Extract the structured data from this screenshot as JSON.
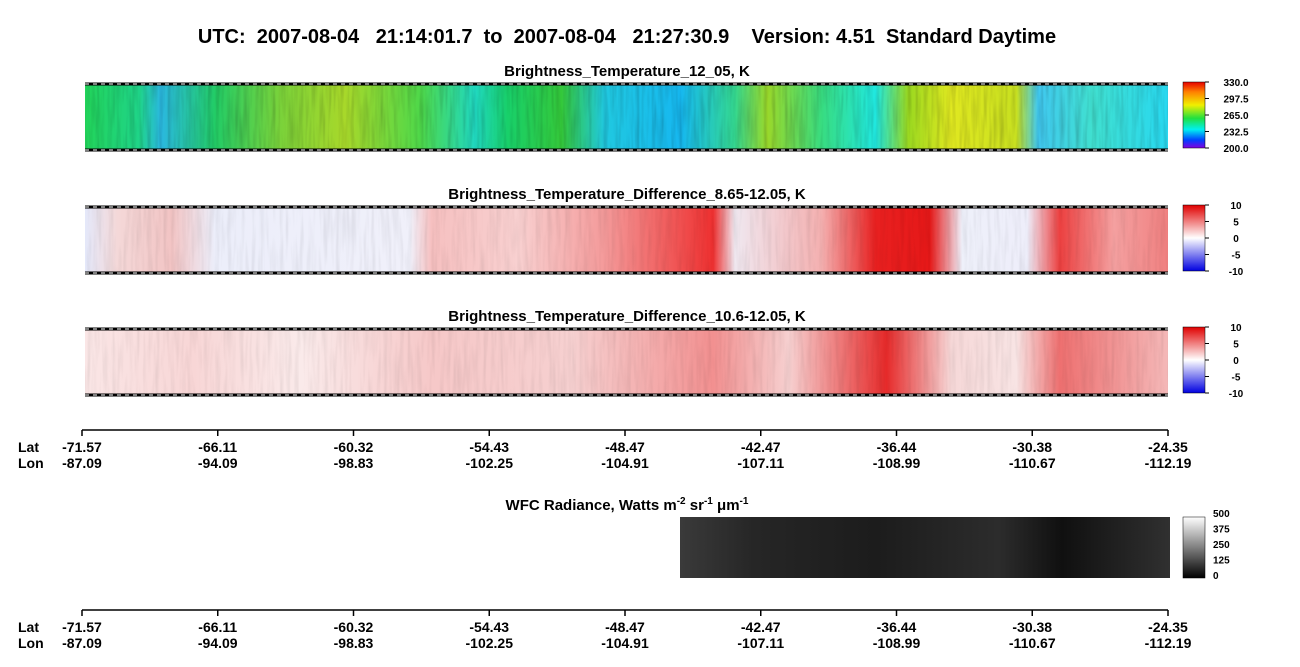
{
  "header": {
    "title": "UTC:  2007-08-04   21:14:01.7  to  2007-08-04   21:27:30.9    Version: 4.51  Standard Daytime"
  },
  "panels": [
    {
      "title": "Brightness_Temperature_12_05, K",
      "colorbar": [
        "330.0",
        "297.5",
        "265.0",
        "232.5",
        "200.0"
      ]
    },
    {
      "title": "Brightness_Temperature_Difference_8.65-12.05, K",
      "colorbar": [
        "10",
        "5",
        "0",
        "-5",
        "-10"
      ]
    },
    {
      "title": "Brightness_Temperature_Difference_10.6-12.05, K",
      "colorbar": [
        "10",
        "5",
        "0",
        "-5",
        "-10"
      ]
    }
  ],
  "wfc": {
    "title": [
      {
        "text": "WFC Radiance, Watts m"
      },
      {
        "sup": "-2"
      },
      {
        "text": " sr"
      },
      {
        "sup": "-1"
      },
      {
        "text": " μm"
      },
      {
        "sup": "-1"
      }
    ],
    "colorbar": [
      "500",
      "375",
      "250",
      "125",
      "0"
    ]
  },
  "axes": [
    {
      "lat_label": "Lat",
      "lon_label": "Lon",
      "lat": [
        "-71.57",
        "-66.11",
        "-60.32",
        "-54.43",
        "-48.47",
        "-42.47",
        "-36.44",
        "-30.38",
        "-24.35"
      ],
      "lon": [
        "-87.09",
        "-94.09",
        "-98.83",
        "-102.25",
        "-104.91",
        "-107.11",
        "-108.99",
        "-110.67",
        "-112.19"
      ]
    },
    {
      "lat_label": "Lat",
      "lon_label": "Lon",
      "lat": [
        "-71.57",
        "-66.11",
        "-60.32",
        "-54.43",
        "-48.47",
        "-42.47",
        "-36.44",
        "-30.38",
        "-24.35"
      ],
      "lon": [
        "-87.09",
        "-94.09",
        "-98.83",
        "-102.25",
        "-104.91",
        "-107.11",
        "-108.99",
        "-110.67",
        "-112.19"
      ]
    }
  ]
}
